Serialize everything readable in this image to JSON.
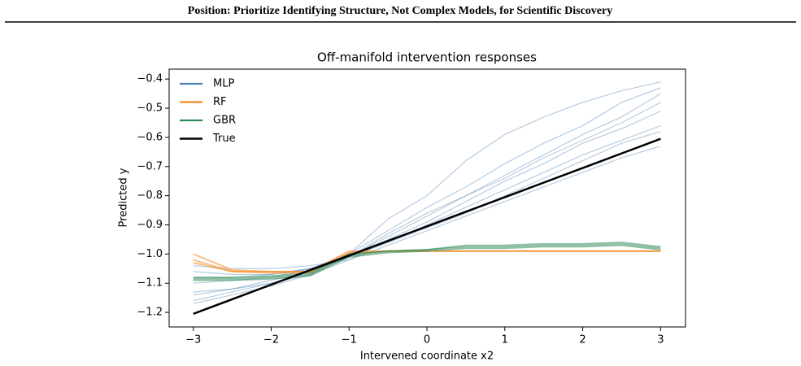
{
  "header": {
    "title": "Position: Prioritize Identifying Structure, Not Complex Models, for Scientific Discovery"
  },
  "chart_data": {
    "type": "line",
    "title": "Off-manifold intervention responses",
    "x_label": "Intervened coordinate x2",
    "y_label": "Predicted y",
    "x": [
      -3,
      -2.5,
      -2,
      -1.5,
      -1,
      -0.5,
      0,
      0.5,
      1,
      1.5,
      2,
      2.5,
      3
    ],
    "xlim": [
      -3.31,
      3.32
    ],
    "ylim": [
      -1.25,
      -0.366
    ],
    "xticks": [
      {
        "value": -3,
        "label": "−3"
      },
      {
        "value": -2,
        "label": "−2"
      },
      {
        "value": -1,
        "label": "−1"
      },
      0,
      1,
      2,
      3
    ],
    "yticks": [
      {
        "value": -0.4,
        "label": "−0.4"
      },
      {
        "value": -0.5,
        "label": "−0.5"
      },
      {
        "value": -0.6,
        "label": "−0.6"
      },
      {
        "value": -0.7,
        "label": "−0.7"
      },
      {
        "value": -0.8,
        "label": "−0.8"
      },
      {
        "value": -0.9,
        "label": "−0.9"
      },
      {
        "value": -1.0,
        "label": "−1.0"
      },
      {
        "value": -1.1,
        "label": "−1.1"
      },
      {
        "value": -1.2,
        "label": "−1.2"
      }
    ],
    "legend": "upper left",
    "series": [
      {
        "name": "MLP",
        "color": "#4a7fb5",
        "runs": [
          [
            -1.13,
            -1.12,
            -1.1,
            -1.07,
            -1.0,
            -0.88,
            -0.8,
            -0.68,
            -0.59,
            -0.53,
            -0.48,
            -0.44,
            -0.41
          ],
          [
            -1.1,
            -1.09,
            -1.08,
            -1.05,
            -1.0,
            -0.92,
            -0.84,
            -0.77,
            -0.69,
            -0.62,
            -0.56,
            -0.48,
            -0.43
          ],
          [
            -1.16,
            -1.13,
            -1.1,
            -1.06,
            -1.01,
            -0.93,
            -0.86,
            -0.8,
            -0.73,
            -0.66,
            -0.59,
            -0.53,
            -0.45
          ],
          [
            -1.06,
            -1.07,
            -1.07,
            -1.05,
            -1.01,
            -0.94,
            -0.87,
            -0.8,
            -0.74,
            -0.67,
            -0.61,
            -0.55,
            -0.48
          ],
          [
            -1.04,
            -1.05,
            -1.05,
            -1.04,
            -1.02,
            -0.95,
            -0.89,
            -0.82,
            -0.75,
            -0.69,
            -0.62,
            -0.57,
            -0.51
          ],
          [
            -1.14,
            -1.12,
            -1.09,
            -1.06,
            -1.01,
            -0.96,
            -0.9,
            -0.84,
            -0.78,
            -0.72,
            -0.66,
            -0.61,
            -0.56
          ],
          [
            -1.17,
            -1.14,
            -1.11,
            -1.07,
            -1.02,
            -0.97,
            -0.92,
            -0.87,
            -0.82,
            -0.77,
            -0.72,
            -0.67,
            -0.63
          ],
          [
            -1.08,
            -1.08,
            -1.07,
            -1.05,
            -1.01,
            -0.96,
            -0.91,
            -0.86,
            -0.8,
            -0.74,
            -0.68,
            -0.62,
            -0.58
          ]
        ]
      },
      {
        "name": "RF",
        "color": "#f5891f",
        "runs": [
          [
            -1.0,
            -1.055,
            -1.06,
            -1.06,
            -0.995,
            -0.99,
            -0.99,
            -0.99,
            -0.99,
            -0.99,
            -0.99,
            -0.99,
            -0.99
          ],
          [
            -1.02,
            -1.06,
            -1.06,
            -1.06,
            -0.99,
            -0.99,
            -0.99,
            -0.99,
            -0.99,
            -0.99,
            -0.99,
            -0.99,
            -0.99
          ],
          [
            -1.03,
            -1.06,
            -1.065,
            -1.065,
            -1.0,
            -0.99,
            -0.99,
            -0.99,
            -0.99,
            -0.99,
            -0.99,
            -0.99,
            -0.99
          ]
        ]
      },
      {
        "name": "GBR",
        "color": "#2e8b57",
        "runs": [
          [
            -1.08,
            -1.08,
            -1.075,
            -1.065,
            -1.0,
            -0.99,
            -0.985,
            -0.97,
            -0.97,
            -0.965,
            -0.965,
            -0.96,
            -0.975
          ],
          [
            -1.085,
            -1.085,
            -1.08,
            -1.07,
            -1.005,
            -0.99,
            -0.985,
            -0.975,
            -0.975,
            -0.97,
            -0.97,
            -0.965,
            -0.98
          ],
          [
            -1.09,
            -1.09,
            -1.085,
            -1.075,
            -1.01,
            -0.995,
            -0.99,
            -0.98,
            -0.98,
            -0.975,
            -0.975,
            -0.97,
            -0.985
          ]
        ]
      },
      {
        "name": "True",
        "color": "#000000",
        "runs": [
          [
            -1.205,
            -1.155,
            -1.105,
            -1.055,
            -1.005,
            -0.955,
            -0.905,
            -0.855,
            -0.805,
            -0.755,
            -0.705,
            -0.655,
            -0.605
          ]
        ]
      }
    ]
  }
}
